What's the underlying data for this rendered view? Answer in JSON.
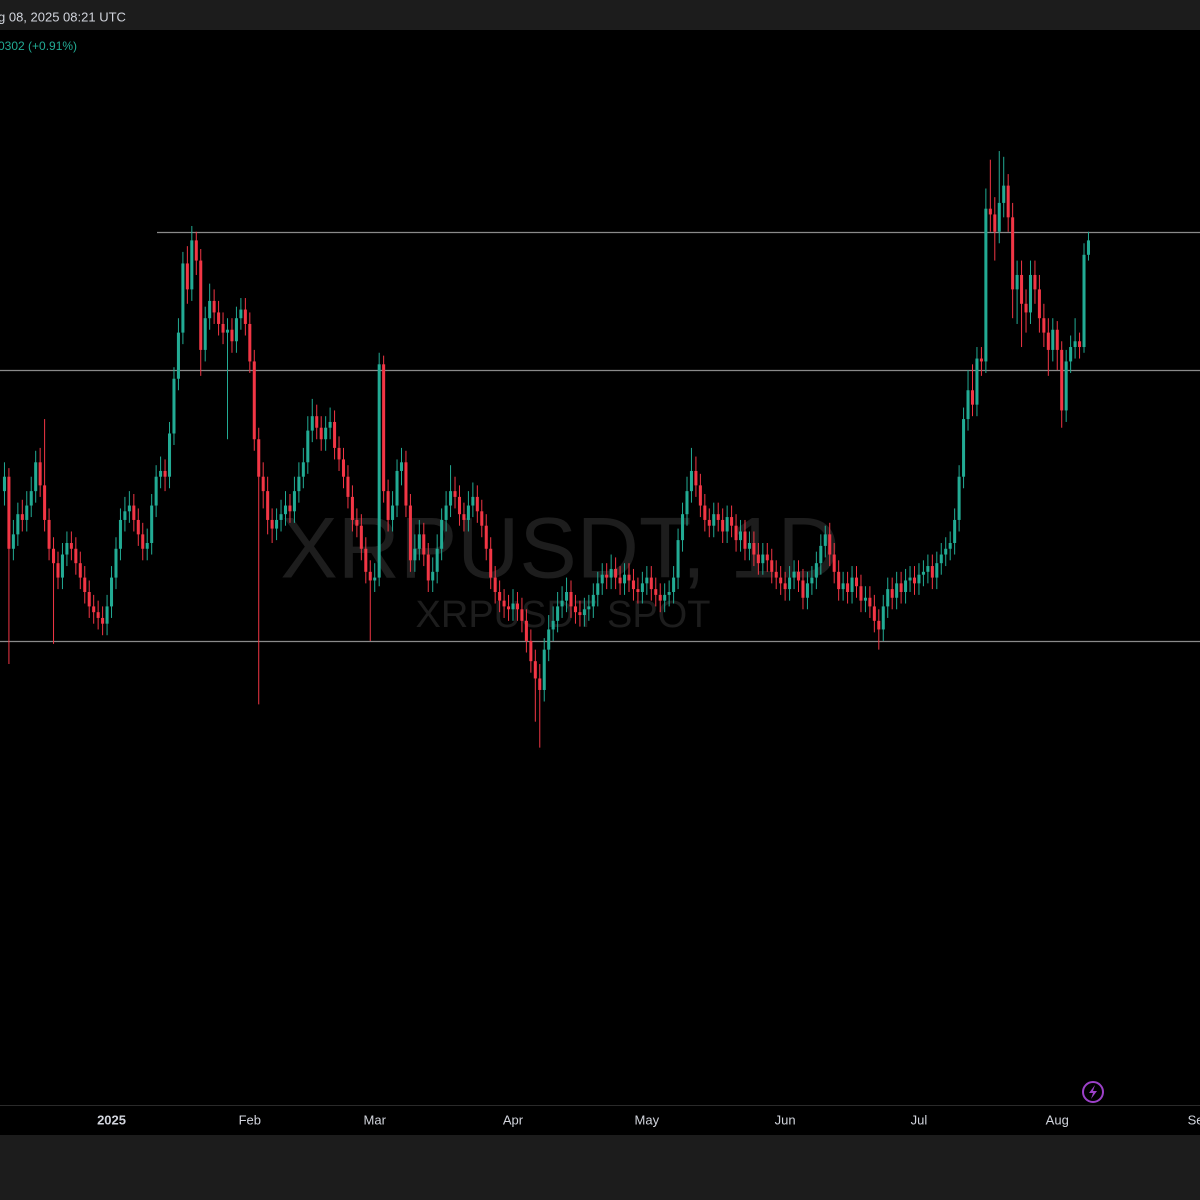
{
  "header": {
    "time": "g 08, 2025 08:21 UTC",
    "change": "0302 (+0.91%)"
  },
  "watermark": {
    "symbol": "XRPUSDT, 1D",
    "market": "XRPUSDT SPOT"
  },
  "chart_data": {
    "type": "candlestick",
    "up_color": "#22ab94",
    "down_color": "#f23645",
    "level_color": "#8a8a8a",
    "ylim": [
      0.37,
      4.1
    ],
    "xlim": [
      -1,
      268
    ],
    "xticks": [
      {
        "value": 24,
        "label": "2025"
      },
      {
        "value": 55,
        "label": "Feb"
      },
      {
        "value": 83,
        "label": "Mar"
      },
      {
        "value": 114,
        "label": "Apr"
      },
      {
        "value": 144,
        "label": "May"
      },
      {
        "value": 175,
        "label": "Jun"
      },
      {
        "value": 205,
        "label": "Jul"
      },
      {
        "value": 236,
        "label": "Aug"
      },
      {
        "value": 267,
        "label": "Se"
      }
    ],
    "levels": [
      3.4,
      2.92,
      1.98
    ],
    "open": [
      2.5,
      2.55,
      2.3,
      2.35,
      2.42,
      2.4,
      2.45,
      2.5,
      2.6,
      2.52,
      2.4,
      2.3,
      2.25,
      2.2,
      2.28,
      2.32,
      2.3,
      2.25,
      2.2,
      2.15,
      2.1,
      2.08,
      2.06,
      2.04,
      2.1,
      2.2,
      2.3,
      2.4,
      2.43,
      2.45,
      2.4,
      2.35,
      2.3,
      2.32,
      2.45,
      2.55,
      2.57,
      2.55,
      2.7,
      2.89,
      3.05,
      3.29,
      3.2,
      3.37,
      3.3,
      2.99,
      3.1,
      3.16,
      3.12,
      3.08,
      3.05,
      3.06,
      3.02,
      3.1,
      3.13,
      3.08,
      2.95,
      2.68,
      2.55,
      2.5,
      2.4,
      2.37,
      2.4,
      2.42,
      2.45,
      2.43,
      2.5,
      2.55,
      2.6,
      2.71,
      2.76,
      2.72,
      2.68,
      2.72,
      2.74,
      2.65,
      2.61,
      2.55,
      2.48,
      2.4,
      2.38,
      2.3,
      2.22,
      2.19,
      2.2,
      2.94,
      2.5,
      2.4,
      2.45,
      2.57,
      2.6,
      2.45,
      2.26,
      2.3,
      2.35,
      2.28,
      2.19,
      2.22,
      2.3,
      2.4,
      2.45,
      2.5,
      2.48,
      2.42,
      2.4,
      2.45,
      2.48,
      2.43,
      2.38,
      2.3,
      2.2,
      2.15,
      2.12,
      2.1,
      2.09,
      2.11,
      2.09,
      2.05,
      1.98,
      1.91,
      1.85,
      1.81,
      1.95,
      2.02,
      2.05,
      2.1,
      2.12,
      2.15,
      2.1,
      2.08,
      2.07,
      2.09,
      2.1,
      2.14,
      2.18,
      2.21,
      2.2,
      2.23,
      2.2,
      2.18,
      2.21,
      2.19,
      2.16,
      2.15,
      2.18,
      2.2,
      2.16,
      2.14,
      2.12,
      2.14,
      2.15,
      2.2,
      2.33,
      2.42,
      2.5,
      2.57,
      2.52,
      2.45,
      2.4,
      2.38,
      2.42,
      2.4,
      2.36,
      2.41,
      2.38,
      2.33,
      2.36,
      2.3,
      2.32,
      2.28,
      2.25,
      2.28,
      2.26,
      2.22,
      2.2,
      2.18,
      2.16,
      2.2,
      2.22,
      2.19,
      2.13,
      2.18,
      2.2,
      2.25,
      2.31,
      2.35,
      2.28,
      2.22,
      2.16,
      2.18,
      2.15,
      2.2,
      2.17,
      2.12,
      2.13,
      2.1,
      2.05,
      2.02,
      2.1,
      2.16,
      2.13,
      2.18,
      2.15,
      2.19,
      2.2,
      2.18,
      2.21,
      2.22,
      2.24,
      2.2,
      2.25,
      2.28,
      2.3,
      2.32,
      2.4,
      2.55,
      2.75,
      2.85,
      2.8,
      2.96,
      2.95,
      3.48,
      3.46,
      3.4,
      3.5,
      3.56,
      3.45,
      3.2,
      3.25,
      3.15,
      3.12,
      3.25,
      3.2,
      3.1,
      3.05,
      2.99,
      3.06,
      2.99,
      2.78,
      2.95,
      3.0,
      3.02,
      3.0,
      3.32
    ],
    "high": [
      2.6,
      2.58,
      2.4,
      2.46,
      2.47,
      2.5,
      2.55,
      2.64,
      2.65,
      2.75,
      2.44,
      2.34,
      2.29,
      2.32,
      2.36,
      2.36,
      2.34,
      2.29,
      2.24,
      2.19,
      2.14,
      2.12,
      2.1,
      2.14,
      2.24,
      2.34,
      2.44,
      2.48,
      2.5,
      2.49,
      2.44,
      2.39,
      2.37,
      2.49,
      2.59,
      2.62,
      2.61,
      2.74,
      2.93,
      3.1,
      3.33,
      3.35,
      3.42,
      3.4,
      3.34,
      3.14,
      3.22,
      3.2,
      3.16,
      3.12,
      3.1,
      3.1,
      3.14,
      3.17,
      3.17,
      3.12,
      2.99,
      2.72,
      2.6,
      2.55,
      2.44,
      2.44,
      2.47,
      2.5,
      2.49,
      2.55,
      2.6,
      2.65,
      2.76,
      2.82,
      2.8,
      2.76,
      2.76,
      2.79,
      2.78,
      2.69,
      2.65,
      2.59,
      2.52,
      2.44,
      2.42,
      2.34,
      2.26,
      2.25,
      2.98,
      2.97,
      2.54,
      2.5,
      2.61,
      2.65,
      2.64,
      2.49,
      2.35,
      2.4,
      2.39,
      2.32,
      2.27,
      2.35,
      2.44,
      2.5,
      2.59,
      2.55,
      2.52,
      2.46,
      2.5,
      2.53,
      2.52,
      2.47,
      2.42,
      2.34,
      2.24,
      2.19,
      2.16,
      2.14,
      2.16,
      2.15,
      2.13,
      2.09,
      2.02,
      1.95,
      1.9,
      1.99,
      2.07,
      2.1,
      2.15,
      2.17,
      2.2,
      2.19,
      2.14,
      2.12,
      2.13,
      2.14,
      2.18,
      2.22,
      2.25,
      2.25,
      2.28,
      2.27,
      2.24,
      2.25,
      2.25,
      2.23,
      2.2,
      2.22,
      2.24,
      2.24,
      2.2,
      2.18,
      2.18,
      2.19,
      2.24,
      2.37,
      2.46,
      2.55,
      2.65,
      2.62,
      2.56,
      2.49,
      2.44,
      2.46,
      2.46,
      2.44,
      2.45,
      2.45,
      2.42,
      2.4,
      2.4,
      2.36,
      2.36,
      2.32,
      2.32,
      2.32,
      2.3,
      2.26,
      2.24,
      2.22,
      2.24,
      2.26,
      2.26,
      2.23,
      2.22,
      2.24,
      2.29,
      2.35,
      2.38,
      2.39,
      2.32,
      2.26,
      2.22,
      2.22,
      2.24,
      2.24,
      2.21,
      2.17,
      2.17,
      2.14,
      2.09,
      2.14,
      2.2,
      2.2,
      2.22,
      2.22,
      2.23,
      2.24,
      2.24,
      2.25,
      2.26,
      2.28,
      2.28,
      2.29,
      2.32,
      2.34,
      2.36,
      2.44,
      2.59,
      2.79,
      2.92,
      2.94,
      3.0,
      3.0,
      3.55,
      3.65,
      3.52,
      3.68,
      3.66,
      3.6,
      3.5,
      3.3,
      3.3,
      3.2,
      3.3,
      3.3,
      3.25,
      3.15,
      3.1,
      3.1,
      3.09,
      3.02,
      2.99,
      3.04,
      3.1,
      3.05,
      3.36,
      3.4
    ],
    "low": [
      2.45,
      1.9,
      2.26,
      2.31,
      2.36,
      2.36,
      2.41,
      2.46,
      2.48,
      2.36,
      2.26,
      1.97,
      2.16,
      2.16,
      2.24,
      2.26,
      2.21,
      2.16,
      2.11,
      2.06,
      2.04,
      2.02,
      2.0,
      2.0,
      2.06,
      2.16,
      2.26,
      2.36,
      2.39,
      2.36,
      2.31,
      2.26,
      2.26,
      2.28,
      2.41,
      2.51,
      2.5,
      2.51,
      2.66,
      2.85,
      3.01,
      3.15,
      3.16,
      3.25,
      2.9,
      2.95,
      3.06,
      3.08,
      3.04,
      3.01,
      2.68,
      2.98,
      2.98,
      3.06,
      3.04,
      2.91,
      2.64,
      1.76,
      2.44,
      2.35,
      2.32,
      2.33,
      2.36,
      2.38,
      2.39,
      2.39,
      2.46,
      2.51,
      2.56,
      2.67,
      2.68,
      2.64,
      2.64,
      2.68,
      2.61,
      2.57,
      2.51,
      2.44,
      2.36,
      2.34,
      2.26,
      2.18,
      1.98,
      2.15,
      2.17,
      2.46,
      2.36,
      2.36,
      2.41,
      2.52,
      2.41,
      2.22,
      2.22,
      2.26,
      2.24,
      2.15,
      2.15,
      2.18,
      2.26,
      2.36,
      2.41,
      2.44,
      2.38,
      2.36,
      2.36,
      2.41,
      2.39,
      2.34,
      2.26,
      2.16,
      2.11,
      2.08,
      2.06,
      2.05,
      2.05,
      2.05,
      2.01,
      1.94,
      1.87,
      1.7,
      1.61,
      1.77,
      1.91,
      1.98,
      2.01,
      2.06,
      2.08,
      2.06,
      2.04,
      2.03,
      2.03,
      2.05,
      2.06,
      2.1,
      2.14,
      2.16,
      2.16,
      2.16,
      2.14,
      2.14,
      2.15,
      2.12,
      2.11,
      2.11,
      2.14,
      2.12,
      2.1,
      2.08,
      2.08,
      2.1,
      2.11,
      2.16,
      2.29,
      2.38,
      2.46,
      2.48,
      2.41,
      2.36,
      2.34,
      2.34,
      2.36,
      2.32,
      2.32,
      2.34,
      2.29,
      2.29,
      2.26,
      2.26,
      2.24,
      2.21,
      2.21,
      2.22,
      2.18,
      2.16,
      2.14,
      2.12,
      2.12,
      2.16,
      2.15,
      2.09,
      2.09,
      2.14,
      2.16,
      2.21,
      2.27,
      2.24,
      2.18,
      2.12,
      2.12,
      2.11,
      2.11,
      2.13,
      2.08,
      2.08,
      2.06,
      2.01,
      1.95,
      1.98,
      2.06,
      2.09,
      2.09,
      2.11,
      2.11,
      2.15,
      2.14,
      2.14,
      2.17,
      2.18,
      2.16,
      2.16,
      2.21,
      2.24,
      2.26,
      2.28,
      2.36,
      2.51,
      2.71,
      2.76,
      2.76,
      2.9,
      2.91,
      3.4,
      3.3,
      3.36,
      3.45,
      3.4,
      3.1,
      3.08,
      3.0,
      3.05,
      3.08,
      3.15,
      3.05,
      3.0,
      2.9,
      2.95,
      2.92,
      2.72,
      2.74,
      2.91,
      2.96,
      2.96,
      2.98,
      3.3
    ],
    "close": [
      2.55,
      2.3,
      2.35,
      2.42,
      2.4,
      2.45,
      2.5,
      2.6,
      2.52,
      2.4,
      2.3,
      2.25,
      2.2,
      2.28,
      2.32,
      2.3,
      2.25,
      2.2,
      2.15,
      2.1,
      2.08,
      2.06,
      2.04,
      2.1,
      2.2,
      2.3,
      2.4,
      2.43,
      2.45,
      2.4,
      2.35,
      2.3,
      2.32,
      2.45,
      2.55,
      2.57,
      2.55,
      2.7,
      2.89,
      3.05,
      3.29,
      3.2,
      3.37,
      3.3,
      2.99,
      3.1,
      3.16,
      3.12,
      3.08,
      3.05,
      3.06,
      3.02,
      3.1,
      3.13,
      3.08,
      2.95,
      2.68,
      2.55,
      2.5,
      2.4,
      2.37,
      2.4,
      2.42,
      2.45,
      2.43,
      2.5,
      2.55,
      2.6,
      2.71,
      2.76,
      2.72,
      2.68,
      2.72,
      2.74,
      2.65,
      2.61,
      2.55,
      2.48,
      2.4,
      2.38,
      2.3,
      2.22,
      2.19,
      2.2,
      2.94,
      2.5,
      2.4,
      2.45,
      2.57,
      2.6,
      2.45,
      2.26,
      2.3,
      2.35,
      2.28,
      2.19,
      2.22,
      2.3,
      2.4,
      2.45,
      2.5,
      2.48,
      2.42,
      2.4,
      2.45,
      2.48,
      2.43,
      2.38,
      2.3,
      2.2,
      2.15,
      2.12,
      2.1,
      2.09,
      2.11,
      2.09,
      2.05,
      1.98,
      1.91,
      1.85,
      1.81,
      1.95,
      2.02,
      2.05,
      2.1,
      2.12,
      2.15,
      2.1,
      2.08,
      2.07,
      2.09,
      2.1,
      2.14,
      2.18,
      2.21,
      2.2,
      2.23,
      2.2,
      2.18,
      2.21,
      2.19,
      2.16,
      2.15,
      2.18,
      2.2,
      2.16,
      2.14,
      2.12,
      2.14,
      2.15,
      2.2,
      2.33,
      2.42,
      2.5,
      2.57,
      2.52,
      2.45,
      2.4,
      2.38,
      2.42,
      2.4,
      2.36,
      2.41,
      2.38,
      2.33,
      2.36,
      2.3,
      2.32,
      2.28,
      2.25,
      2.28,
      2.26,
      2.22,
      2.2,
      2.18,
      2.16,
      2.2,
      2.22,
      2.19,
      2.13,
      2.18,
      2.2,
      2.25,
      2.31,
      2.35,
      2.28,
      2.22,
      2.16,
      2.18,
      2.15,
      2.2,
      2.17,
      2.12,
      2.13,
      2.1,
      2.05,
      2.02,
      2.1,
      2.16,
      2.13,
      2.18,
      2.15,
      2.19,
      2.2,
      2.18,
      2.21,
      2.22,
      2.24,
      2.2,
      2.25,
      2.28,
      2.3,
      2.32,
      2.4,
      2.55,
      2.75,
      2.85,
      2.8,
      2.96,
      2.95,
      3.48,
      3.46,
      3.4,
      3.5,
      3.56,
      3.45,
      3.2,
      3.25,
      3.15,
      3.12,
      3.25,
      3.2,
      3.1,
      3.05,
      2.99,
      3.06,
      2.99,
      2.78,
      2.95,
      3.0,
      3.02,
      3.0,
      3.32,
      3.37
    ]
  }
}
